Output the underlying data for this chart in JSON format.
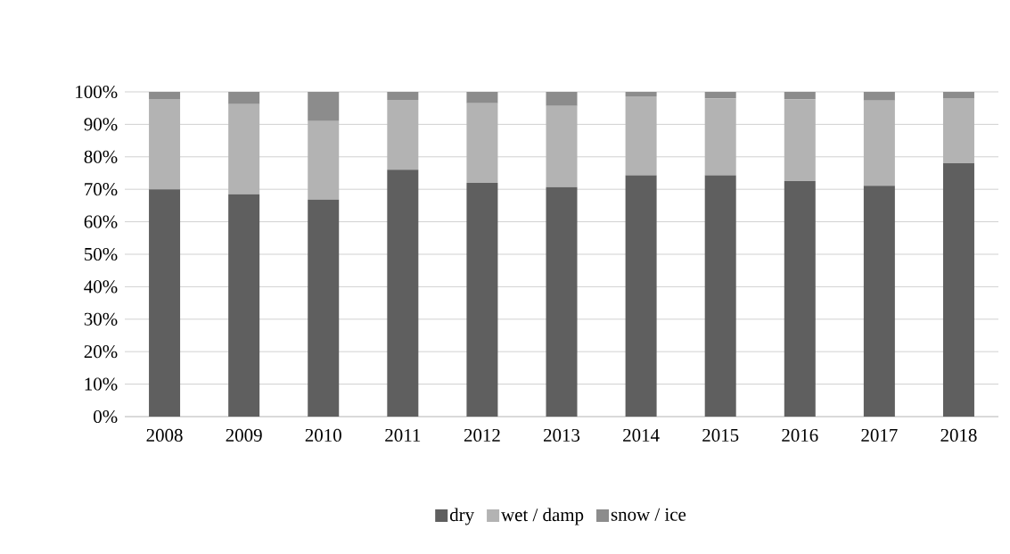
{
  "chart_data": {
    "type": "bar",
    "stacked": true,
    "categories": [
      "2008",
      "2009",
      "2010",
      "2011",
      "2012",
      "2013",
      "2014",
      "2015",
      "2016",
      "2017",
      "2018"
    ],
    "series": [
      {
        "name": "dry",
        "color": "#5f5f5f",
        "values": [
          70,
          68.5,
          66.8,
          76,
          72,
          70.7,
          74.3,
          74.3,
          72.5,
          71.1,
          78
        ]
      },
      {
        "name": "wet / damp",
        "color": "#b3b3b3",
        "values": [
          27.8,
          27.7,
          24.2,
          21.5,
          24.5,
          25,
          24.3,
          23.7,
          25.2,
          26.2,
          20.1
        ]
      },
      {
        "name": "snow / ice",
        "color": "#8c8c8c",
        "values": [
          2.2,
          3.8,
          9,
          2.5,
          3.5,
          4.3,
          1.4,
          2,
          2.3,
          2.7,
          1.9
        ]
      }
    ],
    "ylim": [
      0,
      100
    ],
    "yticks": [
      {
        "value": 0,
        "label": "0%"
      },
      {
        "value": 10,
        "label": "10%"
      },
      {
        "value": 20,
        "label": "20%"
      },
      {
        "value": 30,
        "label": "30%"
      },
      {
        "value": 40,
        "label": "40%"
      },
      {
        "value": 50,
        "label": "50%"
      },
      {
        "value": 60,
        "label": "60%"
      },
      {
        "value": 70,
        "label": "70%"
      },
      {
        "value": 80,
        "label": "80%"
      },
      {
        "value": 90,
        "label": "90%"
      },
      {
        "value": 100,
        "label": "100%"
      }
    ],
    "grid": "y",
    "legend": "bottom"
  }
}
